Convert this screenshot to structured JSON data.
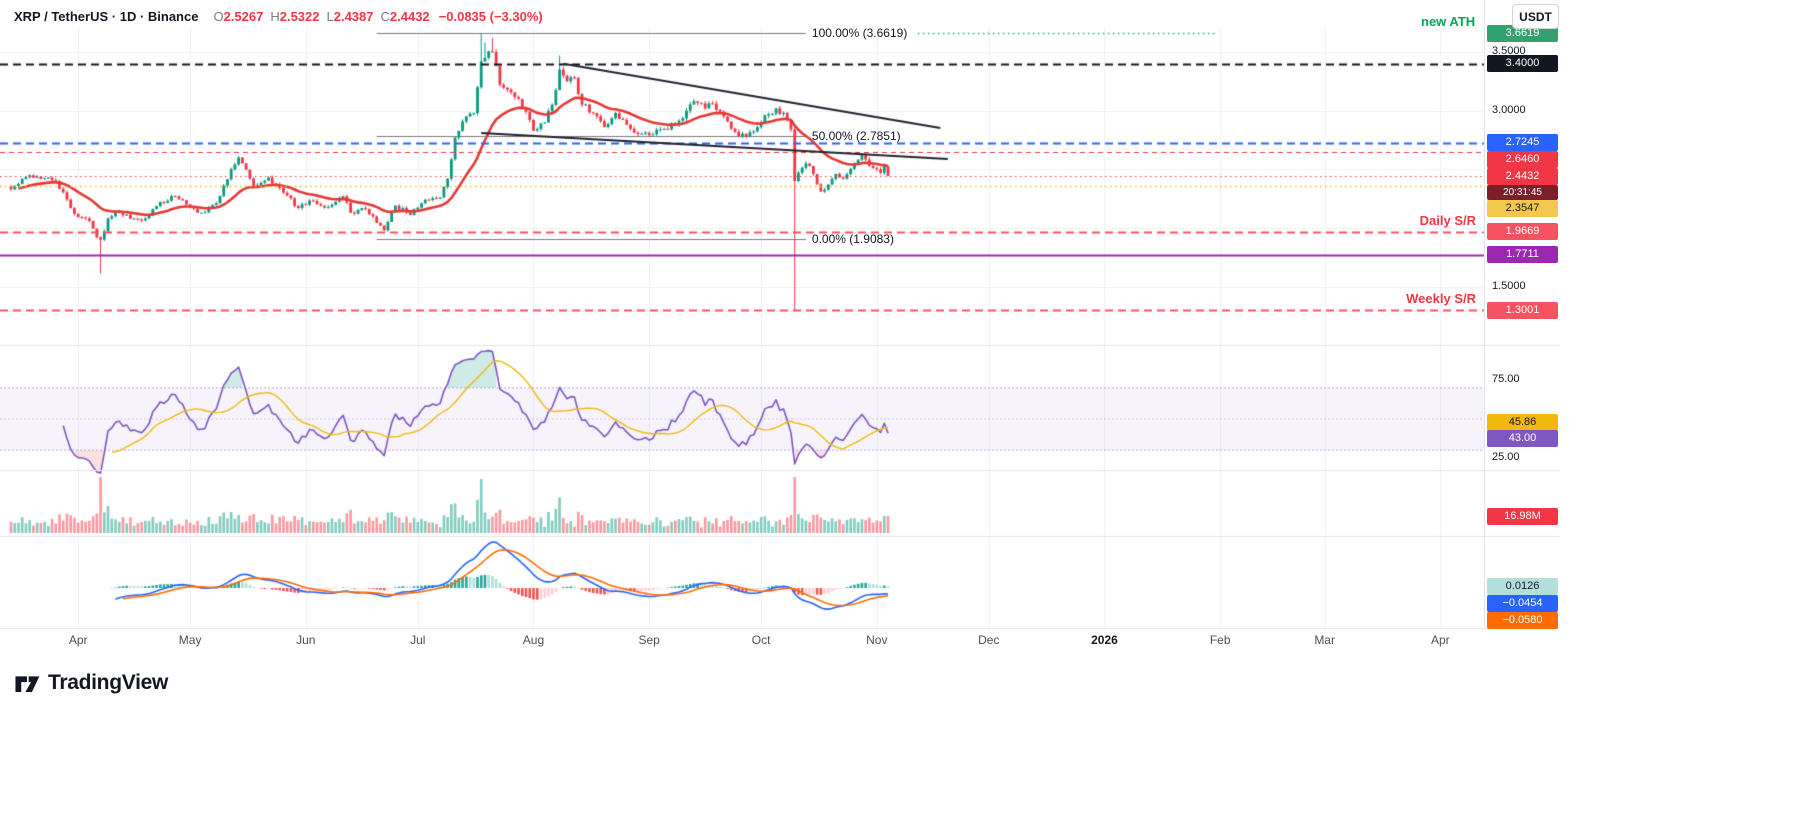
{
  "header": {
    "symbol_title": "XRP / TetherUS · 1D · Binance",
    "open_label": "O",
    "open": "2.5267",
    "high_label": "H",
    "high": "2.5322",
    "low_label": "L",
    "low": "2.4387",
    "close_label": "C",
    "close": "2.4432",
    "change": "−0.0835 (−3.30%)",
    "new_ath": "new ATH",
    "quote_currency": "USDT"
  },
  "price_scale": {
    "plain_labels": [
      {
        "text": "3.5000",
        "price": 3.5
      },
      {
        "text": "3.0000",
        "price": 3.0
      },
      {
        "text": "1.5000",
        "price": 1.5
      }
    ],
    "badges": [
      {
        "text": "3.6619",
        "price": 3.6619,
        "bg": "#33a06f",
        "fg": "#ffffff"
      },
      {
        "text": "3.4000",
        "price": 3.4,
        "bg": "#131722",
        "fg": "#ffffff"
      },
      {
        "text": "2.7245",
        "price": 2.7245,
        "bg": "#2962ff",
        "fg": "#ffffff"
      },
      {
        "text": "2.6460",
        "price": 2.646,
        "bg": "#f23645",
        "fg": "#ffffff"
      },
      {
        "text": "2.4432",
        "price": 2.4432,
        "bg": "#f23645",
        "fg": "#ffffff"
      },
      {
        "text": "2.3547",
        "price": 2.3547,
        "bg": "#f2c94c",
        "fg": "#131722"
      },
      {
        "text": "1.9669",
        "price": 1.9669,
        "bg": "#f7525f",
        "fg": "#ffffff"
      },
      {
        "text": "1.7711",
        "price": 1.7711,
        "bg": "#9c27b0",
        "fg": "#ffffff"
      },
      {
        "text": "1.3001",
        "price": 1.3001,
        "bg": "#f7525f",
        "fg": "#ffffff"
      }
    ],
    "countdown": "20:31:45",
    "countdown_bg": "#7c1f2a"
  },
  "annotations": {
    "fib_100": "100.00% (3.6619)",
    "fib_50": "50.00% (2.7851)",
    "fib_0": "0.00% (1.9083)",
    "daily_sr": "Daily S/R",
    "weekly_sr": "Weekly S/R"
  },
  "rsi_panel": {
    "upper_tick": "75.00",
    "lower_tick": "25.00",
    "ma_value": "45.86",
    "value": "43.00"
  },
  "volume_panel": {
    "value": "16.98M"
  },
  "macd_panel": {
    "hist_value": "0.0126",
    "macd_value": "−0.0454",
    "signal_value": "−0.0580"
  },
  "footer": {
    "brand": "TradingView"
  },
  "colors": {
    "up": "#089981",
    "down": "#f23645",
    "ma": "#e53935",
    "rsi": "#7e57c2",
    "rsi_ma": "#f0b90b",
    "macd": "#2962ff",
    "macd_signal": "#ff6d00",
    "hist_up": "#26a69a",
    "hist_up_weak": "#b2dfdb",
    "hist_down": "#ef5350",
    "hist_down_weak": "#ffcdd2",
    "grid": "#eef1f6",
    "separator": "#e0e3eb",
    "axis_text": "#131722",
    "brand_green": "#08a653",
    "fib_gray": "#787b86",
    "trendline": "#20242f",
    "ath_green": "#22ab67"
  },
  "chart_data": {
    "type": "candlestick",
    "symbol": "XRP/USDT",
    "exchange": "Binance",
    "interval": "1D",
    "last_bar": {
      "open": 2.5267,
      "high": 2.5322,
      "low": 2.4387,
      "close": 2.4432,
      "change": -0.0835,
      "change_pct": -3.3
    },
    "visible_price_range": [
      1.05,
      3.78
    ],
    "day0_date": "2025-03-14",
    "price_path": [
      [
        0,
        2.33
      ],
      [
        5,
        2.45
      ],
      [
        12,
        2.4
      ],
      [
        17,
        2.12
      ],
      [
        21,
        2.06
      ],
      [
        23,
        1.92
      ],
      [
        24,
        1.9
      ],
      [
        26,
        2.08
      ],
      [
        29,
        2.14
      ],
      [
        33,
        2.08
      ],
      [
        36,
        2.08
      ],
      [
        40,
        2.22
      ],
      [
        44,
        2.27
      ],
      [
        47,
        2.2
      ],
      [
        51,
        2.13
      ],
      [
        55,
        2.21
      ],
      [
        59,
        2.5
      ],
      [
        61,
        2.6
      ],
      [
        65,
        2.36
      ],
      [
        69,
        2.43
      ],
      [
        73,
        2.3
      ],
      [
        77,
        2.17
      ],
      [
        81,
        2.23
      ],
      [
        85,
        2.18
      ],
      [
        89,
        2.27
      ],
      [
        91,
        2.13
      ],
      [
        95,
        2.16
      ],
      [
        99,
        2.02
      ],
      [
        100,
        1.98
      ],
      [
        103,
        2.19
      ],
      [
        107,
        2.11
      ],
      [
        111,
        2.24
      ],
      [
        115,
        2.26
      ],
      [
        117,
        2.42
      ],
      [
        119,
        2.77
      ],
      [
        122,
        2.95
      ],
      [
        124,
        2.98
      ],
      [
        125,
        3.2
      ],
      [
        126,
        3.42
      ],
      [
        127,
        3.45
      ],
      [
        129,
        3.5
      ],
      [
        131,
        3.22
      ],
      [
        133,
        3.18
      ],
      [
        136,
        3.1
      ],
      [
        139,
        2.92
      ],
      [
        140,
        2.83
      ],
      [
        143,
        2.9
      ],
      [
        145,
        3.05
      ],
      [
        147,
        3.35
      ],
      [
        149,
        3.25
      ],
      [
        151,
        3.28
      ],
      [
        153,
        3.05
      ],
      [
        156,
        2.98
      ],
      [
        159,
        2.86
      ],
      [
        162,
        2.98
      ],
      [
        165,
        2.88
      ],
      [
        168,
        2.8
      ],
      [
        171,
        2.79
      ],
      [
        174,
        2.84
      ],
      [
        178,
        2.88
      ],
      [
        181,
        3.0
      ],
      [
        183,
        3.08
      ],
      [
        186,
        3.02
      ],
      [
        188,
        3.06
      ],
      [
        191,
        2.95
      ],
      [
        194,
        2.82
      ],
      [
        197,
        2.78
      ],
      [
        200,
        2.86
      ],
      [
        202,
        2.96
      ],
      [
        205,
        3.02
      ],
      [
        208,
        2.92
      ],
      [
        209,
        2.84
      ],
      [
        210,
        2.4
      ],
      [
        211,
        2.47
      ],
      [
        213,
        2.55
      ],
      [
        215,
        2.46
      ],
      [
        217,
        2.31
      ],
      [
        219,
        2.37
      ],
      [
        221,
        2.46
      ],
      [
        223,
        2.42
      ],
      [
        226,
        2.55
      ],
      [
        228,
        2.62
      ],
      [
        230,
        2.53
      ],
      [
        232,
        2.5
      ],
      [
        233,
        2.47
      ],
      [
        234,
        2.53
      ],
      [
        235,
        2.4432
      ]
    ],
    "special_candles": [
      {
        "day": 24,
        "l": 1.61
      },
      {
        "day": 126,
        "h": 3.6619
      },
      {
        "day": 127,
        "h": 3.58
      },
      {
        "day": 129,
        "h": 3.62
      },
      {
        "day": 147,
        "h": 3.47
      },
      {
        "day": 210,
        "o": 2.84,
        "h": 2.88,
        "l": 1.3001,
        "c": 2.4
      },
      {
        "day": 235,
        "o": 2.5267,
        "h": 2.5322,
        "l": 2.4387,
        "c": 2.4432
      }
    ],
    "levels": [
      {
        "price": 3.6619,
        "color": "#22ab67",
        "style": "dotted",
        "width": 1.5,
        "d1": 243,
        "d2": 323,
        "label": "new ATH"
      },
      {
        "price": 3.4,
        "color": "#131722",
        "style": "dashed",
        "width": 2
      },
      {
        "price": 2.7245,
        "color": "#2962ff",
        "style": "dashed",
        "width": 2
      },
      {
        "price": 2.646,
        "color": "#f23645",
        "style": "dashed",
        "width": 1
      },
      {
        "price": 2.4432,
        "color": "#f23645",
        "style": "dotted",
        "width": 1,
        "role": "last-price"
      },
      {
        "price": 2.3547,
        "color": "#f0b90b",
        "style": "dotted",
        "width": 1.5
      },
      {
        "price": 1.9669,
        "color": "#f7525f",
        "style": "dashed",
        "width": 2,
        "label": "Daily S/R"
      },
      {
        "price": 1.7711,
        "color": "#9c27b0",
        "style": "solid",
        "width": 2
      },
      {
        "price": 1.3001,
        "color": "#f7525f",
        "style": "dashed",
        "width": 2,
        "label": "Weekly S/R"
      }
    ],
    "fib_retracement": {
      "p100": 3.6619,
      "p50": 2.7851,
      "p0": 1.9083,
      "d1": 98,
      "d2": 213
    },
    "trendlines": [
      {
        "d1": 148,
        "p1": 3.4,
        "d2": 249,
        "p2": 2.852
      },
      {
        "d1": 126,
        "p1": 2.809,
        "d2": 251,
        "p2": 2.587
      }
    ],
    "moving_average": {
      "type": "EMA",
      "period": 21
    },
    "rsi": {
      "period": 14,
      "value": 43.0,
      "ma_value": 45.86,
      "upper_band": 70,
      "lower_band": 30,
      "scale_ticks": [
        75,
        25
      ]
    },
    "macd": {
      "fast": 12,
      "slow": 26,
      "signal": 9,
      "macd_value": -0.0454,
      "signal_value": -0.058,
      "hist_value": 0.0126
    },
    "volume": {
      "last_label": "16.98M"
    },
    "months": [
      {
        "label": "Apr",
        "day": 18
      },
      {
        "label": "May",
        "day": 48
      },
      {
        "label": "Jun",
        "day": 79
      },
      {
        "label": "Jul",
        "day": 109
      },
      {
        "label": "Aug",
        "day": 140
      },
      {
        "label": "Sep",
        "day": 171
      },
      {
        "label": "Oct",
        "day": 201
      },
      {
        "label": "Nov",
        "day": 232
      },
      {
        "label": "Dec",
        "day": 262
      },
      {
        "label": "2026",
        "day": 293,
        "bold": true
      },
      {
        "label": "Feb",
        "day": 324
      },
      {
        "label": "Mar",
        "day": 352
      },
      {
        "label": "Apr",
        "day": 383
      }
    ]
  }
}
